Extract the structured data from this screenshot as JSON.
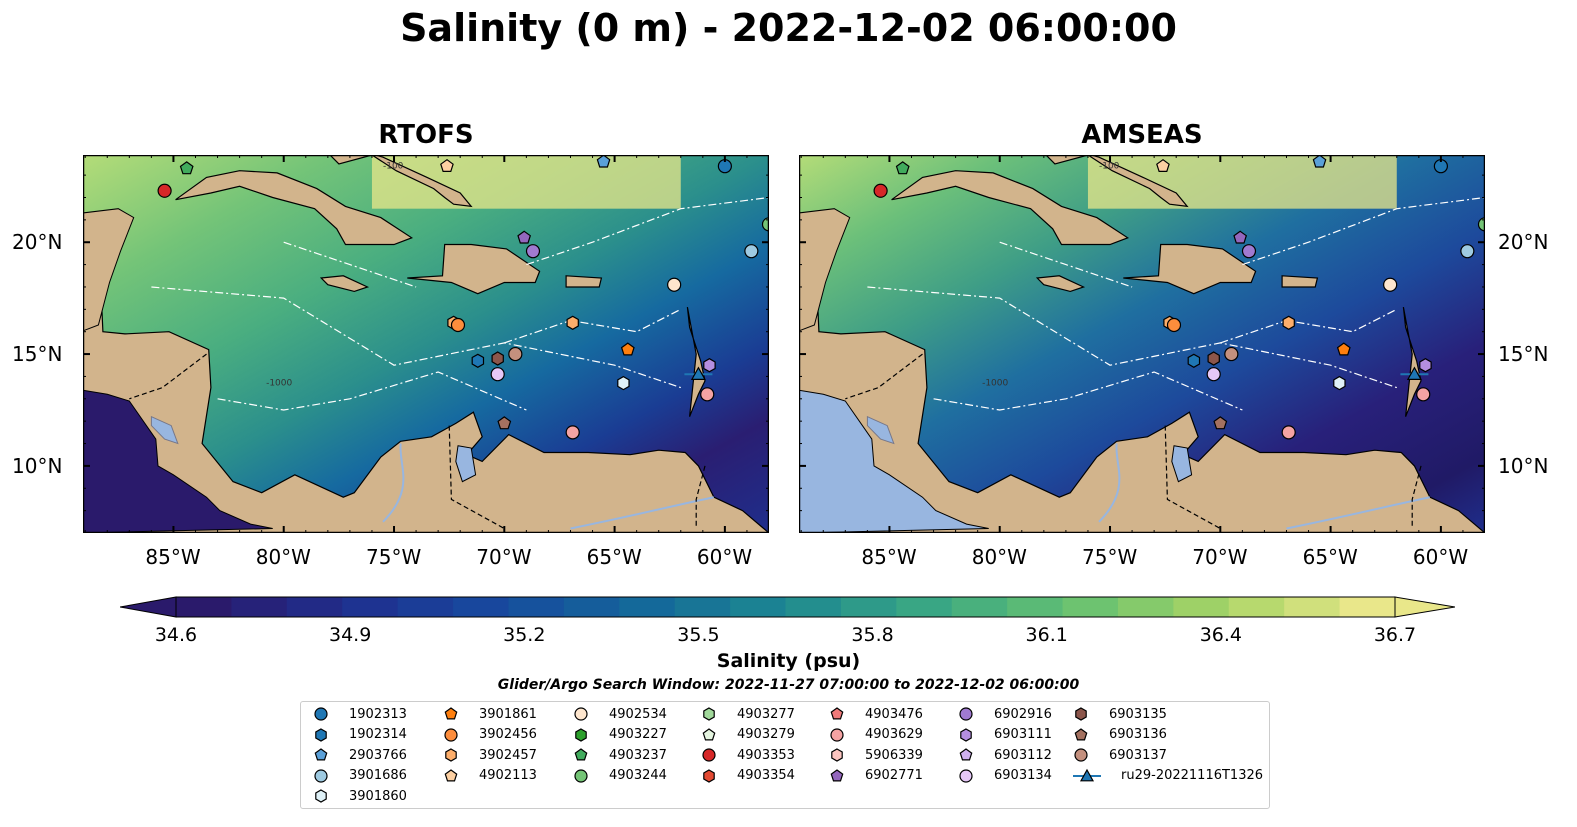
{
  "title": "Salinity (0 m) - 2022-12-02 06:00:00",
  "panels": [
    {
      "title": "RTOFS"
    },
    {
      "title": "AMSEAS"
    }
  ],
  "lon_ticks": [
    "85°W",
    "80°W",
    "75°W",
    "70°W",
    "65°W",
    "60°W"
  ],
  "lat_ticks": [
    "20°N",
    "15°N",
    "10°N"
  ],
  "contour_labels": [
    "-100",
    "-1000",
    "-1000"
  ],
  "colorbar": {
    "label": "Salinity (psu)",
    "ticks": [
      "34.6",
      "34.9",
      "35.2",
      "35.5",
      "35.8",
      "36.1",
      "36.4",
      "36.7"
    ],
    "min": 34.6,
    "max": 36.7,
    "colormap": [
      "#2a1a6b",
      "#1f2f8f",
      "#174a9e",
      "#14679a",
      "#1d8891",
      "#3aa783",
      "#67c171",
      "#a7d465",
      "#e9e78a"
    ]
  },
  "subtitle": "Glider/Argo Search Window: 2022-11-27 07:00:00 to 2022-12-02 06:00:00",
  "land_color": "#d2b48c",
  "water_body_color": "#98b6e0",
  "legend": [
    {
      "id": "1902313",
      "marker": "circle",
      "color": "#1f77b4"
    },
    {
      "id": "1902314",
      "marker": "hexagon",
      "color": "#1f77b4"
    },
    {
      "id": "2903766",
      "marker": "pentagon",
      "color": "#5aa0d8"
    },
    {
      "id": "3901686",
      "marker": "circle",
      "color": "#9ecae1"
    },
    {
      "id": "3901860",
      "marker": "hexagon",
      "color": "#dff1f7"
    },
    {
      "id": "3901861",
      "marker": "pentagon",
      "color": "#ff7f0e"
    },
    {
      "id": "3902456",
      "marker": "circle",
      "color": "#fd8d3c"
    },
    {
      "id": "3902457",
      "marker": "hexagon",
      "color": "#fdae6b"
    },
    {
      "id": "4902113",
      "marker": "pentagon",
      "color": "#fdd0a2"
    },
    {
      "id": "4902534",
      "marker": "circle",
      "color": "#fee6ce"
    },
    {
      "id": "4903227",
      "marker": "hexagon",
      "color": "#2ca02c"
    },
    {
      "id": "4903237",
      "marker": "pentagon",
      "color": "#41ab5d"
    },
    {
      "id": "4903244",
      "marker": "circle",
      "color": "#74c476"
    },
    {
      "id": "4903277",
      "marker": "hexagon",
      "color": "#a1d99b"
    },
    {
      "id": "4903279",
      "marker": "pentagon",
      "color": "#e5f5e0"
    },
    {
      "id": "4903353",
      "marker": "circle",
      "color": "#d62728"
    },
    {
      "id": "4903354",
      "marker": "hexagon",
      "color": "#e34a33"
    },
    {
      "id": "4903476",
      "marker": "pentagon",
      "color": "#f07a7a"
    },
    {
      "id": "4903629",
      "marker": "circle",
      "color": "#f4a3a3"
    },
    {
      "id": "5906339",
      "marker": "hexagon",
      "color": "#fcc5c0"
    },
    {
      "id": "6902771",
      "marker": "pentagon",
      "color": "#9467bd"
    },
    {
      "id": "6902916",
      "marker": "circle",
      "color": "#a07ad0"
    },
    {
      "id": "6903111",
      "marker": "hexagon",
      "color": "#b58ee0"
    },
    {
      "id": "6903112",
      "marker": "pentagon",
      "color": "#cfb0ef"
    },
    {
      "id": "6903134",
      "marker": "circle",
      "color": "#e6c8f7"
    },
    {
      "id": "6903135",
      "marker": "hexagon",
      "color": "#8c564b"
    },
    {
      "id": "6903136",
      "marker": "pentagon",
      "color": "#a47160"
    },
    {
      "id": "6903137",
      "marker": "circle",
      "color": "#c4907e"
    },
    {
      "id": "ru29-20221116T1326",
      "marker": "triangle-line",
      "color": "#1f77b4"
    }
  ],
  "markers": [
    {
      "id": "4903353",
      "lon": -85.4,
      "lat": 22.3
    },
    {
      "id": "4903237",
      "lon": -84.4,
      "lat": 23.3
    },
    {
      "id": "4902113",
      "lon": -72.6,
      "lat": 23.4
    },
    {
      "id": "2903766",
      "lon": -65.5,
      "lat": 23.6
    },
    {
      "id": "1902313",
      "lon": -60.0,
      "lat": 23.4
    },
    {
      "id": "4903244",
      "lon": -58.0,
      "lat": 20.8
    },
    {
      "id": "3901686",
      "lon": -58.8,
      "lat": 19.6
    },
    {
      "id": "6902771",
      "lon": -69.1,
      "lat": 20.2
    },
    {
      "id": "6902916",
      "lon": -68.7,
      "lat": 19.6
    },
    {
      "id": "4902534",
      "lon": -62.3,
      "lat": 18.1
    },
    {
      "id": "3902457",
      "lon": -72.3,
      "lat": 16.4
    },
    {
      "id": "3902456",
      "lon": -72.1,
      "lat": 16.3
    },
    {
      "id": "3902457",
      "lon": -66.9,
      "lat": 16.4
    },
    {
      "id": "3901861",
      "lon": -64.4,
      "lat": 15.2
    },
    {
      "id": "6903137",
      "lon": -69.5,
      "lat": 15.0
    },
    {
      "id": "6903135",
      "lon": -70.3,
      "lat": 14.8
    },
    {
      "id": "1902314",
      "lon": -71.2,
      "lat": 14.7
    },
    {
      "id": "6903134",
      "lon": -70.3,
      "lat": 14.1
    },
    {
      "id": "3901860",
      "lon": -64.6,
      "lat": 13.7
    },
    {
      "id": "6903111",
      "lon": -60.7,
      "lat": 14.5
    },
    {
      "id": "ru29-20221116T1326",
      "lon": -61.2,
      "lat": 14.1
    },
    {
      "id": "4903629",
      "lon": -60.8,
      "lat": 13.2
    },
    {
      "id": "4903629",
      "lon": -66.9,
      "lat": 11.5
    },
    {
      "id": "6903136",
      "lon": -70.0,
      "lat": 11.9
    }
  ]
}
